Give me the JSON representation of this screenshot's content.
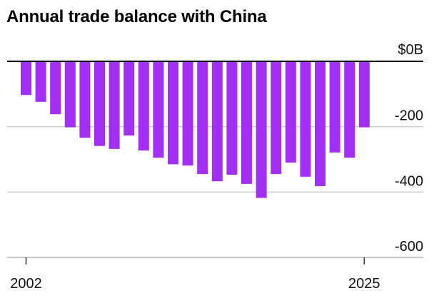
{
  "chart_data": {
    "type": "bar",
    "title": "Annual trade balance with China",
    "xlabel": "",
    "ylabel": "",
    "x": [
      2002,
      2003,
      2004,
      2005,
      2006,
      2007,
      2008,
      2009,
      2010,
      2011,
      2012,
      2013,
      2014,
      2015,
      2016,
      2017,
      2018,
      2019,
      2020,
      2021,
      2022,
      2023,
      2024,
      2025
    ],
    "values": [
      -103,
      -124,
      -162,
      -202,
      -234,
      -259,
      -268,
      -227,
      -273,
      -295,
      -315,
      -319,
      -345,
      -367,
      -347,
      -375,
      -418,
      -345,
      -310,
      -353,
      -382,
      -279,
      -295,
      -202
    ],
    "ylim": [
      -600,
      0
    ],
    "y_ticks": [
      0,
      -200,
      -400,
      -600
    ],
    "y_tick_labels": [
      "$0B",
      "-200",
      "-400",
      "-600"
    ],
    "x_tick_labels": [
      "2002",
      "2025"
    ],
    "grid": true,
    "bar_color": "#a32ff5"
  }
}
